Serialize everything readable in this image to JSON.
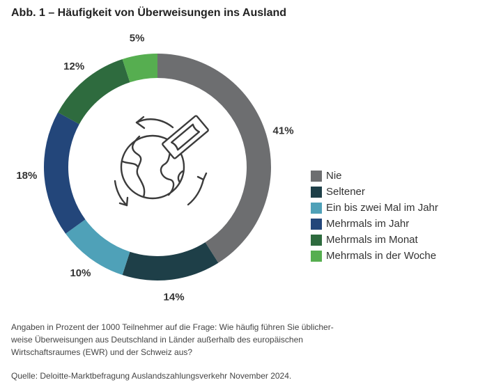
{
  "title": "Abb. 1 – Häufigkeit von Überweisungen ins Ausland",
  "chart_data": {
    "type": "pie",
    "style": "donut",
    "categories": [
      "Nie",
      "Seltener",
      "Ein bis zwei Mal im Jahr",
      "Mehrmals im Jahr",
      "Mehrmals im Monat",
      "Mehrmals in der Woche"
    ],
    "values": [
      41,
      14,
      10,
      18,
      12,
      5
    ],
    "labels": [
      "41%",
      "14%",
      "10%",
      "18%",
      "12%",
      "5%"
    ],
    "colors": [
      "#6d6e70",
      "#1e3f48",
      "#4fa1b8",
      "#23467a",
      "#2e6b3e",
      "#56ae50"
    ],
    "legend_position": "right",
    "center_icon": "globe-money-transfer-icon"
  },
  "note": "Angaben in Prozent der 1000 Teilnehmer auf die Frage: Wie häufig führen Sie üblicher-weise Überweisungen aus Deutschland in Länder außerhalb des europäischen Wirtschaftsraumes (EWR) und der Schweiz aus?",
  "note_lines": [
    "Angaben in Prozent der 1000 Teilnehmer auf die Frage: Wie häufig führen Sie üblicher-",
    "weise Überweisungen aus Deutschland in Länder außerhalb des europäischen",
    "Wirtschaftsraumes (EWR) und der Schweiz aus?"
  ],
  "source": "Quelle: Deloitte-Marktbefragung Auslandszahlungsverkehr November 2024."
}
